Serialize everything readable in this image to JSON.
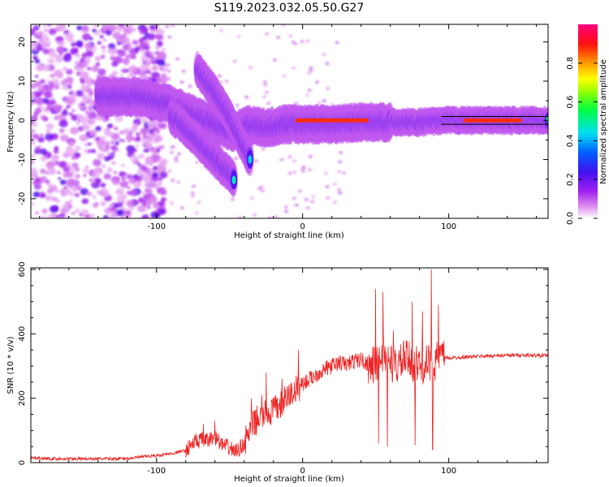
{
  "title": "S119.2023.032.05.50.G27",
  "chart_data": [
    {
      "type": "heatmap",
      "xlabel": "Height of straight line (km)",
      "ylabel": "Frequency (Hz)",
      "xlim": [
        -186,
        168
      ],
      "ylim": [
        -25,
        24.5
      ],
      "x_ticks": [
        "-100",
        "0",
        "100"
      ],
      "x_tick_values": [
        -100,
        0,
        100
      ],
      "y_ticks": [
        "-20",
        "-10",
        "0",
        "10",
        "20"
      ],
      "y_tick_values": [
        -20,
        -10,
        0,
        10,
        20
      ],
      "colorbar": {
        "label": "Normalized spectral amplitude",
        "ticks": [
          "0.0",
          "0.2",
          "0.4",
          "0.6",
          "0.8"
        ],
        "tick_values": [
          0.0,
          0.2,
          0.4,
          0.6,
          0.8
        ],
        "range": [
          0,
          1
        ],
        "colormap": "rainbow (magenta-blue-cyan-green-yellow-red)"
      },
      "ridges": [
        {
          "x": [
            -140,
            -110,
            -90,
            -75,
            -60,
            -48,
            -38,
            -25,
            -12,
            0,
            20,
            40,
            60,
            80,
            100,
            140,
            168
          ],
          "y": [
            6,
            6,
            4,
            1.5,
            -1,
            -3,
            -1,
            -2,
            -1,
            -1,
            -1,
            -0.5,
            -0.5,
            -0.5,
            0,
            0,
            0
          ]
        },
        {
          "x": [
            -72,
            -62,
            -52,
            -45,
            -40,
            -36
          ],
          "y": [
            13,
            8,
            2,
            -3,
            -7,
            -10
          ]
        },
        {
          "x": [
            -90,
            -80,
            -70,
            -60,
            -52,
            -47
          ],
          "y": [
            1,
            -2,
            -6,
            -10,
            -13,
            -15
          ]
        }
      ],
      "red_segments": [
        {
          "x": [
            -5,
            45
          ],
          "y": 0
        },
        {
          "x": [
            110,
            150
          ],
          "y": 0
        }
      ]
    },
    {
      "type": "line",
      "xlabel": "Height of straight line (km)",
      "ylabel": "SNR (10 * v/v)",
      "xlim": [
        -186,
        168
      ],
      "ylim": [
        0,
        605
      ],
      "x_ticks": [
        "-100",
        "0",
        "100"
      ],
      "x_tick_values": [
        -100,
        0,
        100
      ],
      "y_ticks": [
        "0",
        "200",
        "400",
        "600"
      ],
      "y_tick_values": [
        0,
        200,
        400,
        600
      ],
      "series": [
        {
          "color": "#ee2222",
          "x": [
            -186,
            -170,
            -150,
            -130,
            -120,
            -110,
            -100,
            -90,
            -80,
            -75,
            -70,
            -65,
            -60,
            -55,
            -50,
            -45,
            -40,
            -35,
            -30,
            -25,
            -20,
            -15,
            -10,
            -5,
            0,
            5,
            10,
            15,
            20,
            25,
            30,
            35,
            40,
            45,
            50,
            55,
            60,
            65,
            70,
            75,
            80,
            85,
            90,
            95,
            100,
            110,
            120,
            130,
            140,
            150,
            160,
            168
          ],
          "values": [
            15,
            12,
            12,
            12,
            13,
            18,
            22,
            28,
            38,
            60,
            70,
            68,
            80,
            55,
            45,
            35,
            60,
            110,
            140,
            150,
            160,
            180,
            205,
            225,
            245,
            260,
            275,
            290,
            300,
            310,
            305,
            315,
            320,
            305,
            300,
            340,
            310,
            300,
            325,
            310,
            300,
            305,
            310,
            330,
            325,
            328,
            330,
            332,
            333,
            334,
            333,
            333
          ]
        }
      ],
      "spikes": [
        {
          "x": -73,
          "y": 90
        },
        {
          "x": -68,
          "y": 120
        },
        {
          "x": -60,
          "y": 130
        },
        {
          "x": -35,
          "y": 200
        },
        {
          "x": -28,
          "y": 210
        },
        {
          "x": -25,
          "y": 280
        },
        {
          "x": -20,
          "y": 200
        },
        {
          "x": -14,
          "y": 260
        },
        {
          "x": -3,
          "y": 350
        },
        {
          "x": 50,
          "y": 540
        },
        {
          "x": 52,
          "y": 60
        },
        {
          "x": 55,
          "y": 530
        },
        {
          "x": 58,
          "y": 50
        },
        {
          "x": 62,
          "y": 410
        },
        {
          "x": 75,
          "y": 500
        },
        {
          "x": 77,
          "y": 55
        },
        {
          "x": 82,
          "y": 470
        },
        {
          "x": 88,
          "y": 600
        },
        {
          "x": 89,
          "y": 40
        },
        {
          "x": 93,
          "y": 490
        },
        {
          "x": 96,
          "y": 370
        }
      ]
    }
  ]
}
